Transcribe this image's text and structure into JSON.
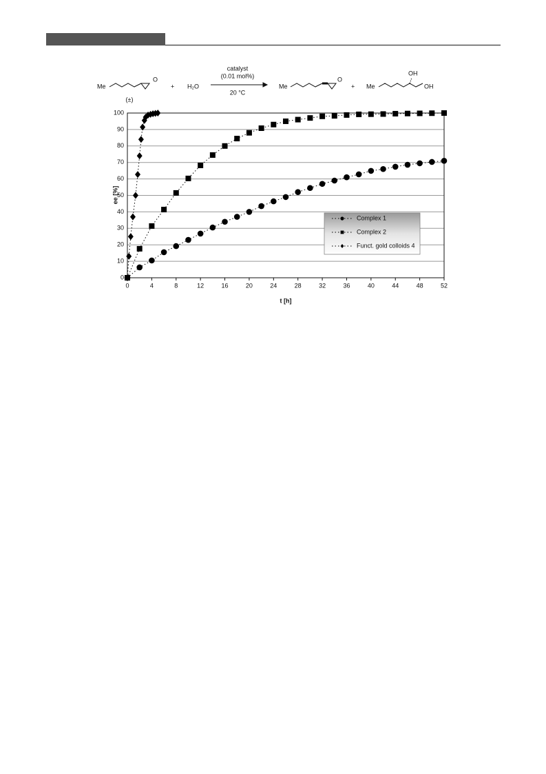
{
  "scheme": {
    "reactant_group": "Me",
    "epoxide_o_1": "O",
    "racemic": "(±)",
    "plus_1": "+",
    "water": "H₂O",
    "catalyst": "catalyst",
    "loading": "(0.01 mol%)",
    "temperature": "20 °C",
    "product_group": "Me",
    "epoxide_o_2": "O",
    "plus_2": "+",
    "diol_group": "Me",
    "diol_oh_1": "OH",
    "diol_oh_2": "OH"
  },
  "chart_data": {
    "type": "line",
    "xlabel": "t [h]",
    "ylabel": "ee [%]",
    "xlim": [
      0,
      52
    ],
    "ylim": [
      0,
      100
    ],
    "xticks": [
      0,
      4,
      8,
      12,
      16,
      20,
      24,
      28,
      32,
      36,
      40,
      44,
      48,
      52
    ],
    "yticks": [
      0,
      10,
      20,
      30,
      40,
      50,
      60,
      70,
      80,
      90,
      100
    ],
    "grid": true,
    "legend": "lower right",
    "linestyle": "dotted",
    "series": [
      {
        "name": "Complex 1",
        "color": "#000000",
        "marker": "circle",
        "x": [
          0,
          2,
          4,
          6,
          8,
          10,
          12,
          14,
          16,
          18,
          20,
          22,
          24,
          26,
          28,
          30,
          32,
          34,
          36,
          38,
          40,
          42,
          44,
          46,
          48,
          50,
          52
        ],
        "values": [
          0,
          6.3,
          10.5,
          15.5,
          19.2,
          23,
          26.8,
          30.5,
          34,
          37,
          40,
          43.5,
          46.4,
          49,
          52,
          54.5,
          57,
          59,
          61,
          62.8,
          64.9,
          66,
          67.4,
          68.6,
          69.5,
          70.3,
          71
        ]
      },
      {
        "name": "Complex 2",
        "color": "#000000",
        "marker": "square",
        "x": [
          0,
          2,
          4,
          6,
          8,
          10,
          12,
          14,
          16,
          18,
          20,
          22,
          24,
          26,
          28,
          30,
          32,
          34,
          36,
          38,
          40,
          42,
          44,
          46,
          48,
          50,
          52
        ],
        "values": [
          0,
          17.6,
          31.4,
          41.4,
          51.5,
          60.3,
          68.2,
          74.5,
          80,
          84.5,
          88,
          90.8,
          93,
          95,
          96,
          97,
          98,
          98.3,
          98.8,
          99.2,
          99.3,
          99.4,
          99.6,
          99.7,
          99.8,
          99.9,
          100
        ]
      },
      {
        "name": "Funct. gold colloids 4",
        "color": "#000000",
        "marker": "diamond",
        "x": [
          0,
          0.25,
          0.55,
          0.9,
          1.35,
          1.7,
          2,
          2.25,
          2.5,
          2.8,
          3,
          3.4,
          3.8,
          4.2,
          4.6,
          5
        ],
        "values": [
          0,
          13,
          25,
          37,
          50,
          62.7,
          74,
          84,
          91.5,
          95.5,
          97.5,
          98.8,
          99.2,
          99.6,
          99.8,
          100
        ]
      }
    ]
  }
}
